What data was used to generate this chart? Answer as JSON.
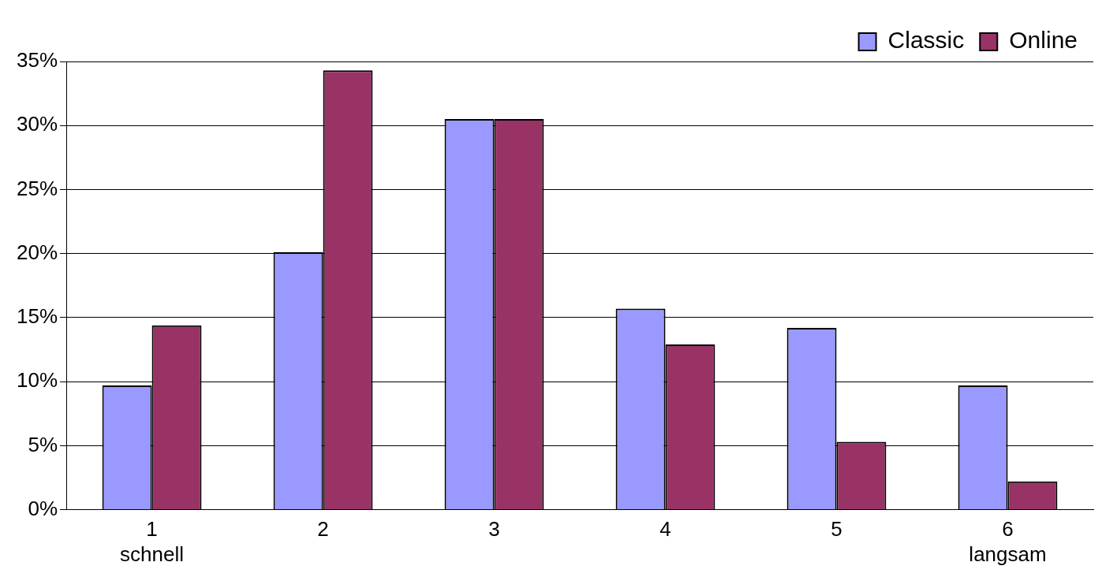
{
  "chart_data": {
    "type": "bar",
    "categories": [
      "1\nschnell",
      "2",
      "3",
      "4",
      "5",
      "6\nlangsam"
    ],
    "series": [
      {
        "name": "Classic",
        "color": "#9999ff",
        "values": [
          9.7,
          20.1,
          30.5,
          15.7,
          14.2,
          9.7
        ]
      },
      {
        "name": "Online",
        "color": "#993366",
        "values": [
          14.4,
          34.3,
          30.5,
          12.9,
          5.3,
          2.2
        ]
      }
    ],
    "ylim": [
      0,
      35
    ],
    "yticks": [
      {
        "value": 0,
        "label": "0%"
      },
      {
        "value": 5,
        "label": "5%"
      },
      {
        "value": 10,
        "label": "10%"
      },
      {
        "value": 15,
        "label": "15%"
      },
      {
        "value": 20,
        "label": "20%"
      },
      {
        "value": 25,
        "label": "25%"
      },
      {
        "value": 30,
        "label": "30%"
      },
      {
        "value": 35,
        "label": "35%"
      }
    ],
    "grid": "y",
    "legend": "top right"
  }
}
